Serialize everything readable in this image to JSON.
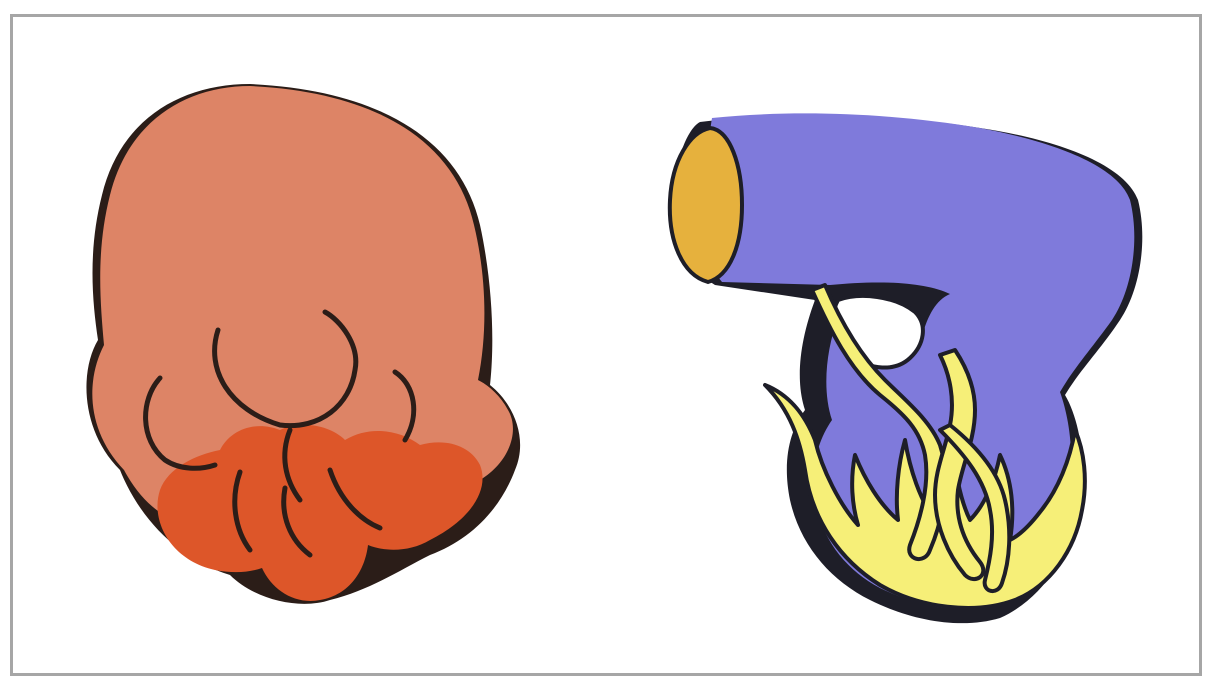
{
  "colors": {
    "frame_border": "#a6a6a6",
    "outline": "#2b1d18",
    "blob_light": "#dd8466",
    "blob_dark": "#dd5629",
    "body_purple": "#7f7adb",
    "cap_orange": "#e6b13d",
    "flame_yellow": "#f6ef78"
  },
  "figures": [
    {
      "id": "left-figure",
      "parts": [
        "upper-lobe",
        "lower-lobes"
      ]
    },
    {
      "id": "right-figure",
      "parts": [
        "purple-body",
        "orange-cap",
        "yellow-tendrils"
      ]
    }
  ]
}
